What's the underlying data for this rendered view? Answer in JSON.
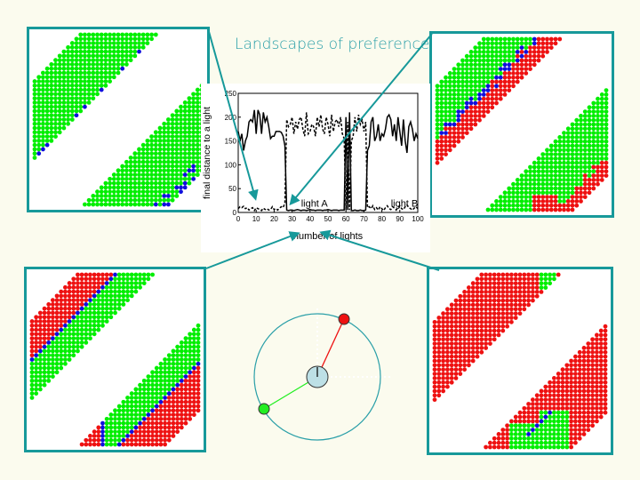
{
  "slide": {
    "title": "Landscapes of preference"
  },
  "colors": {
    "accent": "#17999a",
    "green": "#00ee00",
    "red": "#ee1111",
    "blue": "#1010dd",
    "background": "#fbfbee"
  },
  "panels": [
    {
      "id": "top-left",
      "description_colors": [
        "green",
        "blue"
      ]
    },
    {
      "id": "top-right",
      "description_colors": [
        "green",
        "red",
        "blue"
      ]
    },
    {
      "id": "bottom-left",
      "description_colors": [
        "red",
        "green",
        "blue"
      ]
    },
    {
      "id": "bottom-right",
      "description_colors": [
        "red",
        "green",
        "blue"
      ]
    }
  ],
  "chart_data": {
    "type": "line",
    "title": "",
    "xlabel": "number of lights",
    "ylabel": "final distance to a light",
    "xlim": [
      0,
      100
    ],
    "ylim": [
      0,
      250
    ],
    "xticks": [
      0,
      10,
      20,
      30,
      40,
      50,
      60,
      70,
      80,
      90,
      100
    ],
    "yticks": [
      0,
      50,
      100,
      150,
      200,
      250
    ],
    "grid": false,
    "annotations": [
      {
        "text": "light A",
        "x": 35,
        "y": 12
      },
      {
        "text": "light B",
        "x": 85,
        "y": 12
      }
    ],
    "x": [
      0,
      1,
      2,
      3,
      4,
      5,
      6,
      7,
      8,
      9,
      10,
      11,
      12,
      13,
      14,
      15,
      16,
      17,
      18,
      19,
      20,
      21,
      22,
      23,
      24,
      25,
      26,
      27,
      28,
      29,
      30,
      31,
      32,
      33,
      34,
      35,
      36,
      37,
      38,
      39,
      40,
      41,
      42,
      43,
      44,
      45,
      46,
      47,
      48,
      49,
      50,
      51,
      52,
      53,
      54,
      55,
      56,
      57,
      58,
      59,
      60,
      61,
      62,
      63,
      64,
      65,
      66,
      67,
      68,
      69,
      70,
      71,
      72,
      73,
      74,
      75,
      76,
      77,
      78,
      79,
      80,
      81,
      82,
      83,
      84,
      85,
      86,
      87,
      88,
      89,
      90,
      91,
      92,
      93,
      94,
      95,
      96,
      97,
      98,
      99,
      100
    ],
    "series": [
      {
        "style": "solid",
        "values": [
          170,
          150,
          165,
          130,
          150,
          160,
          190,
          195,
          190,
          215,
          165,
          215,
          205,
          165,
          210,
          190,
          200,
          180,
          155,
          160,
          160,
          170,
          170,
          170,
          168,
          160,
          140,
          5,
          4,
          5,
          5,
          4,
          5,
          6,
          5,
          4,
          5,
          5,
          4,
          5,
          6,
          5,
          5,
          4,
          5,
          5,
          5,
          4,
          5,
          5,
          6,
          5,
          4,
          5,
          5,
          5,
          4,
          5,
          5,
          5,
          200,
          5,
          210,
          4,
          4,
          5,
          4,
          4,
          5,
          4,
          4,
          5,
          130,
          140,
          190,
          200,
          150,
          160,
          185,
          150,
          165,
          160,
          175,
          200,
          205,
          195,
          160,
          185,
          150,
          200,
          170,
          140,
          195,
          150,
          125,
          180,
          190,
          175,
          150,
          165,
          155
        ]
      },
      {
        "style": "dashed",
        "values": [
          8,
          12,
          10,
          13,
          8,
          10,
          5,
          8,
          10,
          4,
          10,
          8,
          6,
          4,
          9,
          6,
          8,
          5,
          6,
          12,
          6,
          8,
          5,
          9,
          12,
          10,
          20,
          195,
          180,
          185,
          200,
          165,
          190,
          175,
          195,
          200,
          175,
          160,
          210,
          165,
          170,
          185,
          180,
          160,
          200,
          180,
          205,
          175,
          165,
          200,
          185,
          160,
          205,
          170,
          190,
          195,
          180,
          200,
          165,
          155,
          5,
          190,
          5,
          150,
          160,
          200,
          170,
          205,
          185,
          195,
          170,
          190,
          10,
          12,
          8,
          14,
          6,
          10,
          5,
          12,
          8,
          4,
          10,
          14,
          8,
          6,
          12,
          9,
          5,
          10,
          14,
          8,
          6,
          12,
          16,
          10,
          8,
          5,
          9,
          12,
          8
        ]
      }
    ]
  }
}
